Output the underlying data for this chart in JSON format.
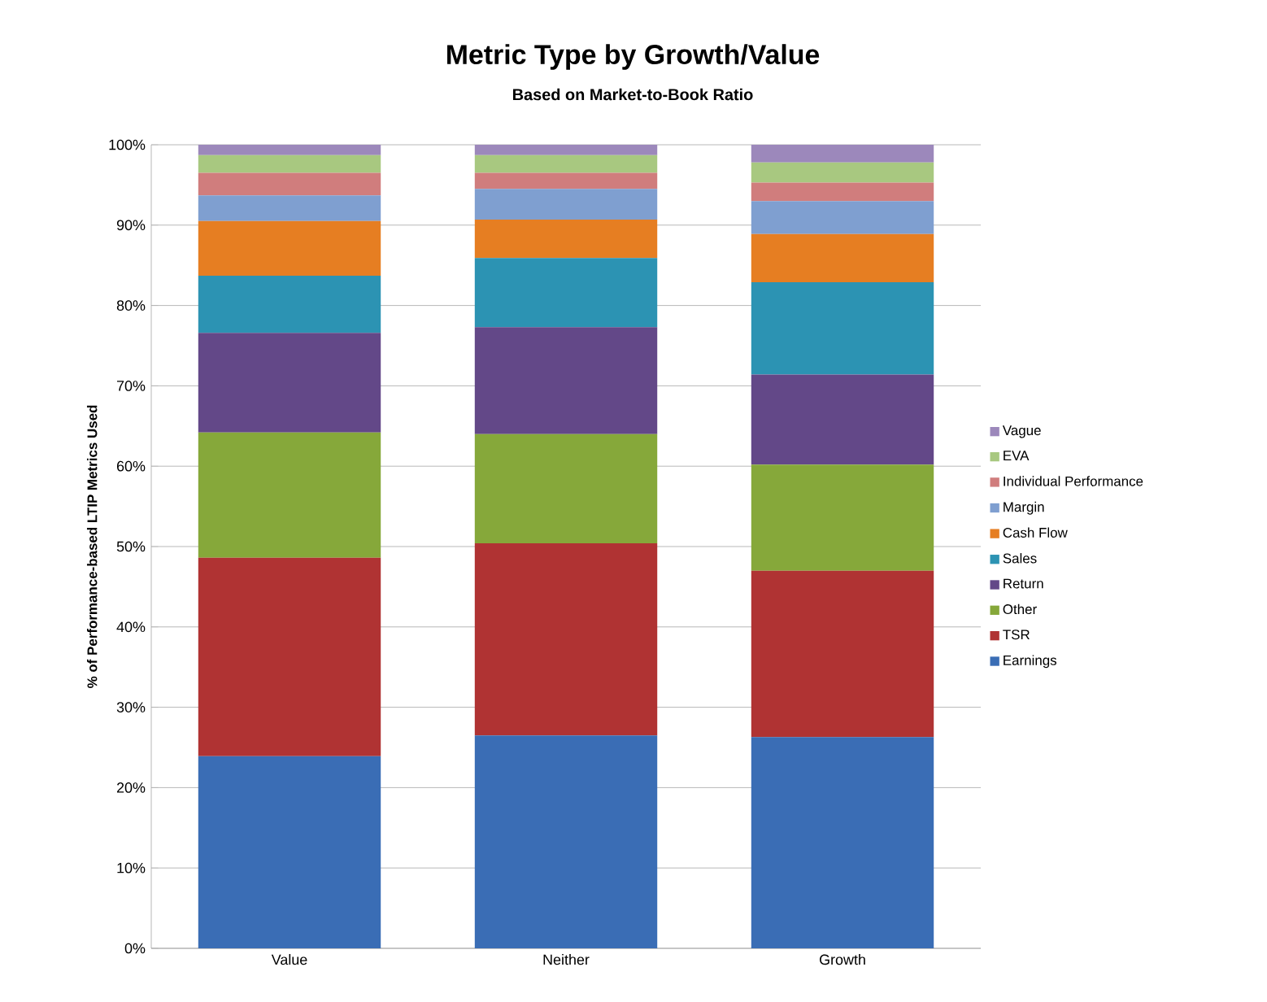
{
  "chart_data": {
    "type": "bar",
    "stacked": true,
    "title": "Metric Type by Growth/Value",
    "subtitle": "Based on Market-to-Book Ratio",
    "ylabel": "% of Performance-based LTIP Metrics Used",
    "categories": [
      "Value",
      "Neither",
      "Growth"
    ],
    "series": [
      {
        "name": "Earnings",
        "color": "#3a6db5",
        "values": [
          23.9,
          26.5,
          26.3
        ]
      },
      {
        "name": "TSR",
        "color": "#b03333",
        "values": [
          24.7,
          23.9,
          20.7
        ]
      },
      {
        "name": "Other",
        "color": "#86a83a",
        "values": [
          15.6,
          13.6,
          13.2
        ]
      },
      {
        "name": "Return",
        "color": "#634888",
        "values": [
          12.4,
          13.3,
          11.2
        ]
      },
      {
        "name": "Sales",
        "color": "#2c93b3",
        "values": [
          7.1,
          8.6,
          11.5
        ]
      },
      {
        "name": "Cash Flow",
        "color": "#e67e22",
        "values": [
          6.8,
          4.8,
          6.0
        ]
      },
      {
        "name": "Margin",
        "color": "#7f9fd0",
        "values": [
          3.2,
          3.8,
          4.1
        ]
      },
      {
        "name": "Individual Performance",
        "color": "#d07d7d",
        "values": [
          2.8,
          2.0,
          2.3
        ]
      },
      {
        "name": "EVA",
        "color": "#a8c880",
        "values": [
          2.2,
          2.2,
          2.5
        ]
      },
      {
        "name": "Vague",
        "color": "#9c88bb",
        "values": [
          1.3,
          1.3,
          2.2
        ]
      }
    ],
    "ylim": [
      0,
      100
    ],
    "yticks": [
      {
        "value": 0,
        "label": "0%"
      },
      {
        "value": 10,
        "label": "10%"
      },
      {
        "value": 20,
        "label": "20%"
      },
      {
        "value": 30,
        "label": "30%"
      },
      {
        "value": 40,
        "label": "40%"
      },
      {
        "value": 50,
        "label": "50%"
      },
      {
        "value": 60,
        "label": "60%"
      },
      {
        "value": 70,
        "label": "70%"
      },
      {
        "value": 80,
        "label": "80%"
      },
      {
        "value": 90,
        "label": "90%"
      },
      {
        "value": 100,
        "label": "100%"
      }
    ],
    "grid": "y",
    "legend": "right"
  }
}
